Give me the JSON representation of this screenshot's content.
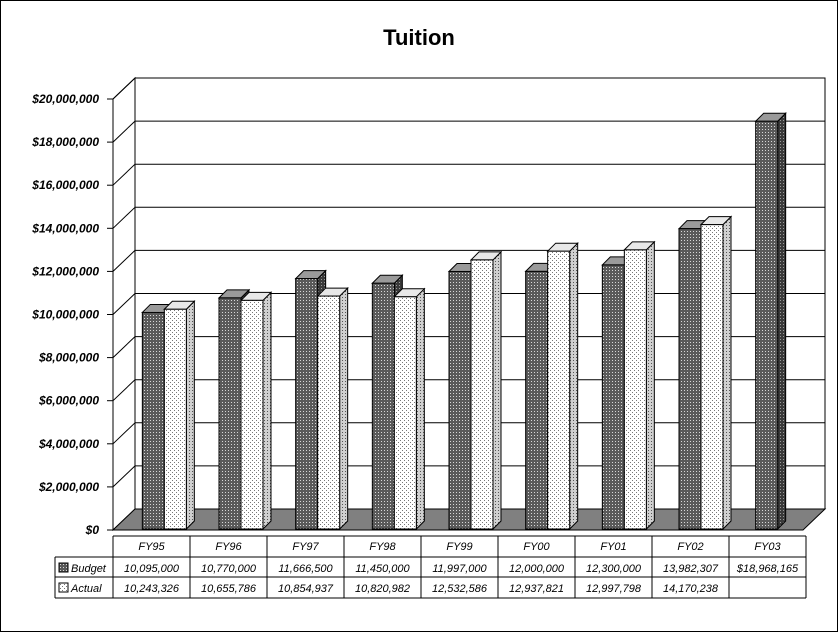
{
  "chart_data": {
    "type": "bar",
    "title": "Tuition",
    "categories": [
      "FY95",
      "FY96",
      "FY97",
      "FY98",
      "FY99",
      "FY00",
      "FY01",
      "FY02",
      "FY03"
    ],
    "series": [
      {
        "name": "Budget",
        "values": [
          10095000,
          10770000,
          11666500,
          11450000,
          11997000,
          12000000,
          12300000,
          13982307,
          18968165
        ],
        "labels": [
          "10,095,000",
          "10,770,000",
          "11,666,500",
          "11,450,000",
          "11,997,000",
          "12,000,000",
          "12,300,000",
          "13,982,307",
          "$18,968,165"
        ]
      },
      {
        "name": "Actual",
        "values": [
          10243326,
          10655786,
          10854937,
          10820982,
          12532586,
          12937821,
          12997798,
          14170238,
          null
        ],
        "labels": [
          "10,243,326",
          "10,655,786",
          "10,854,937",
          "10,820,982",
          "12,532,586",
          "12,937,821",
          "12,997,798",
          "14,170,238",
          ""
        ]
      }
    ],
    "ylim": [
      0,
      20000000
    ],
    "yticks": [
      "$0",
      "$2,000,000",
      "$4,000,000",
      "$6,000,000",
      "$8,000,000",
      "$10,000,000",
      "$12,000,000",
      "$14,000,000",
      "$16,000,000",
      "$18,000,000",
      "$20,000,000"
    ],
    "grid": true,
    "legend": "data table",
    "style": "3d-clustered",
    "colors": {
      "budget": "#808080",
      "actual": "#ffffff",
      "floor": "#808080"
    }
  }
}
